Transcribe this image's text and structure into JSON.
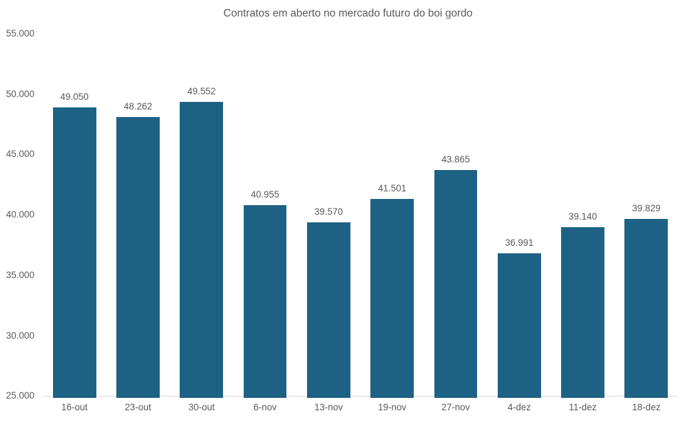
{
  "chart": {
    "title": "Contratos em aberto no mercado futuro do boi gordo"
  },
  "chart_data": {
    "type": "bar",
    "title": "Contratos em aberto no mercado futuro do boi gordo",
    "categories": [
      "16-out",
      "23-out",
      "30-out",
      "6-nov",
      "13-nov",
      "19-nov",
      "27-nov",
      "4-dez",
      "11-dez",
      "18-dez"
    ],
    "values": [
      49050,
      48262,
      49552,
      40955,
      39570,
      41501,
      43865,
      36991,
      39140,
      39829
    ],
    "value_labels": [
      "49.050",
      "48.262",
      "49.552",
      "40.955",
      "39.570",
      "41.501",
      "43.865",
      "36.991",
      "39.140",
      "39.829"
    ],
    "xlabel": "",
    "ylabel": "",
    "ylim": [
      25000,
      55000
    ],
    "ytick_interval": 5000,
    "ytick_labels": [
      "55.000",
      "50.000",
      "45.000",
      "40.000",
      "35.000",
      "30.000",
      "25.000"
    ],
    "grid": false,
    "legend": false,
    "colors": {
      "bar": "#1D6284",
      "text": "#595959",
      "axis_line": "#D9D9D9",
      "background": "#FFFFFF"
    }
  }
}
